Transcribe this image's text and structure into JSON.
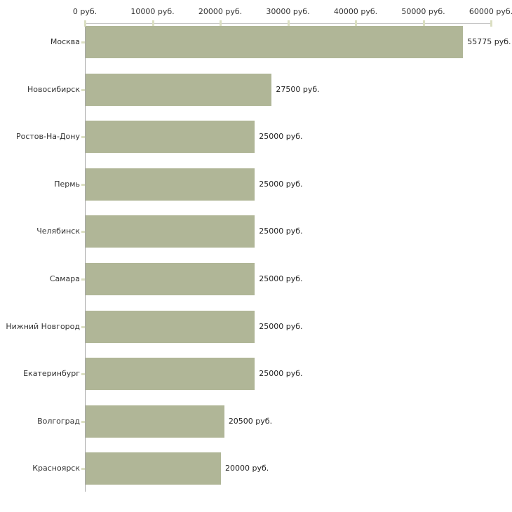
{
  "chart_data": {
    "type": "bar",
    "orientation": "horizontal",
    "title": "",
    "xlabel": "",
    "ylabel": "",
    "unit": "руб.",
    "grid": false,
    "legend": false,
    "xlim": [
      0,
      60000
    ],
    "x_ticks": [
      0,
      10000,
      20000,
      30000,
      40000,
      50000,
      60000
    ],
    "x_tick_labels": [
      "0 руб.",
      "10000 руб.",
      "20000 руб.",
      "30000 руб.",
      "40000 руб.",
      "50000 руб.",
      "60000 руб."
    ],
    "categories": [
      "Москва",
      "Новосибирск",
      "Ростов-На-Дону",
      "Пермь",
      "Челябинск",
      "Самара",
      "Нижний Новгород",
      "Екатеринбург",
      "Волгоград",
      "Красноярск"
    ],
    "values": [
      55775,
      27500,
      25000,
      25000,
      25000,
      25000,
      25000,
      25000,
      20500,
      20000
    ],
    "value_labels": [
      "55775 руб.",
      "27500 руб.",
      "25000 руб.",
      "25000 руб.",
      "25000 руб.",
      "25000 руб.",
      "25000 руб.",
      "25000 руб.",
      "20500 руб.",
      "20000 руб."
    ],
    "colors": {
      "bar_fill": "#b0b697",
      "top_axis_line": "#c6c6c6",
      "y_axis_line": "#a6a6a6",
      "tick_mark": "#dbdfc2",
      "text": "#333333",
      "background": "#ffffff"
    }
  }
}
